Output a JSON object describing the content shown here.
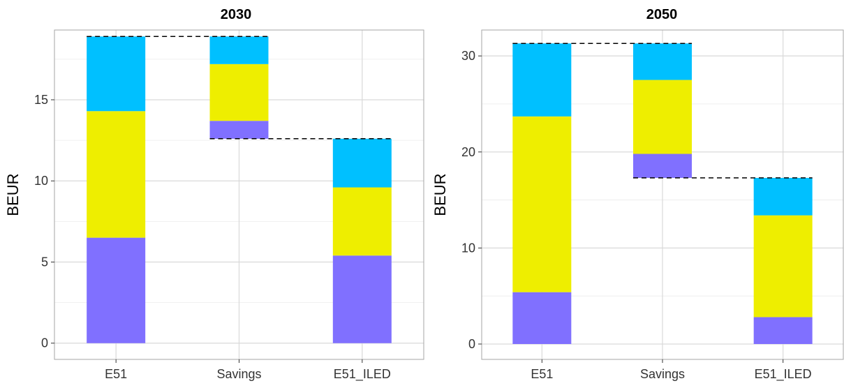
{
  "chart_data": [
    {
      "type": "bar",
      "title": "2030",
      "ylabel": "BEUR",
      "categories": [
        "E51",
        "Savings",
        "E51_ILED"
      ],
      "ylim": [
        -1.0,
        19.3
      ],
      "yticks": [
        0,
        5,
        10,
        15
      ],
      "stacked": true,
      "grid": true,
      "bars": [
        {
          "category": "E51",
          "base": 0,
          "segments": [
            {
              "color": "#8070FF",
              "value": 6.5
            },
            {
              "color": "#EEEE00",
              "value": 7.8
            },
            {
              "color": "#00C0FF",
              "value": 4.6
            }
          ]
        },
        {
          "category": "Savings",
          "base": 12.6,
          "segments": [
            {
              "color": "#8070FF",
              "value": 1.1
            },
            {
              "color": "#EEEE00",
              "value": 3.5
            },
            {
              "color": "#00C0FF",
              "value": 1.7
            }
          ]
        },
        {
          "category": "E51_ILED",
          "base": 0,
          "segments": [
            {
              "color": "#8070FF",
              "value": 5.4
            },
            {
              "color": "#EEEE00",
              "value": 4.2
            },
            {
              "color": "#00C0FF",
              "value": 3.0
            }
          ]
        }
      ],
      "connectors": [
        {
          "from": "E51",
          "to": "Savings",
          "y": 18.9
        },
        {
          "from": "Savings",
          "to": "E51_ILED",
          "y": 12.6
        }
      ]
    },
    {
      "type": "bar",
      "title": "2050",
      "ylabel": "BEUR",
      "categories": [
        "E51",
        "Savings",
        "E51_ILED"
      ],
      "ylim": [
        -1.6,
        32.7
      ],
      "yticks": [
        0,
        10,
        20,
        30
      ],
      "stacked": true,
      "grid": true,
      "bars": [
        {
          "category": "E51",
          "base": 0,
          "segments": [
            {
              "color": "#8070FF",
              "value": 5.4
            },
            {
              "color": "#EEEE00",
              "value": 18.3
            },
            {
              "color": "#00C0FF",
              "value": 7.6
            }
          ]
        },
        {
          "category": "Savings",
          "base": 17.3,
          "segments": [
            {
              "color": "#8070FF",
              "value": 2.5
            },
            {
              "color": "#EEEE00",
              "value": 7.7
            },
            {
              "color": "#00C0FF",
              "value": 3.8
            }
          ]
        },
        {
          "category": "E51_ILED",
          "base": 0,
          "segments": [
            {
              "color": "#8070FF",
              "value": 2.8
            },
            {
              "color": "#EEEE00",
              "value": 10.6
            },
            {
              "color": "#00C0FF",
              "value": 3.9
            }
          ]
        }
      ],
      "connectors": [
        {
          "from": "E51",
          "to": "Savings",
          "y": 31.3
        },
        {
          "from": "Savings",
          "to": "E51_ILED",
          "y": 17.3
        }
      ]
    }
  ]
}
